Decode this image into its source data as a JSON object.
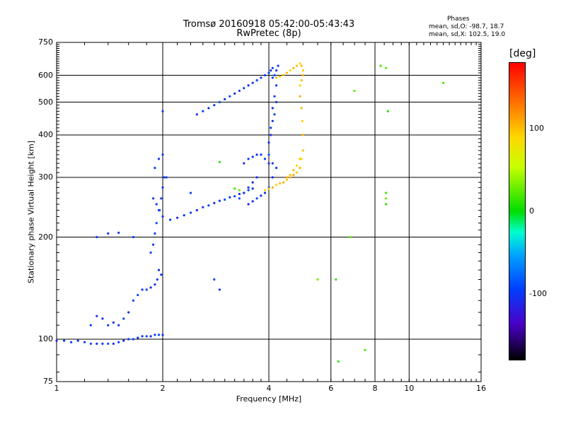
{
  "chart_data": {
    "type": "scatter",
    "title": "Tromsø 20160918 05:42:00-05:43:43",
    "subtitle": "RwPretec (8p)",
    "xlabel": "Frequency [MHz]",
    "ylabel": "Stationary phase Virtual Height [km]",
    "x_scale": "log",
    "y_scale": "log",
    "xlim": [
      1,
      16
    ],
    "ylim": [
      75,
      750
    ],
    "x_ticks": [
      "1",
      "2",
      "4",
      "6",
      "8",
      "10",
      "16"
    ],
    "x_tick_values": [
      1,
      2,
      4,
      6,
      8,
      10,
      16
    ],
    "y_ticks": [
      "750",
      "600",
      "500",
      "400",
      "300",
      "200",
      "100",
      "75"
    ],
    "y_tick_values": [
      750,
      600,
      500,
      400,
      300,
      200,
      100,
      75
    ],
    "grid": true,
    "colorbar": {
      "label": "[deg]",
      "ticks": [
        "100",
        "0",
        "-100"
      ],
      "tick_values": [
        100,
        0,
        -100
      ],
      "range": [
        -180,
        180
      ]
    },
    "phase_stats": {
      "title": "Phases",
      "o_line": "mean, sd,O: -98.7, 18.7",
      "x_line": "mean, sd,X: 102.5, 19.0"
    },
    "series": [
      {
        "mode": "O",
        "phase_deg": -100,
        "x": [
          1.0,
          1.05,
          1.1,
          1.15,
          1.2,
          1.25,
          1.3,
          1.35,
          1.4,
          1.45,
          1.5,
          1.55,
          1.6,
          1.65,
          1.7,
          1.75,
          1.8,
          1.85,
          1.9,
          1.95,
          2.0,
          1.25,
          1.3,
          1.35,
          1.4,
          1.45,
          1.5,
          1.55,
          1.6,
          1.65,
          1.7,
          1.75,
          1.8,
          1.85,
          1.9,
          1.93,
          1.95,
          1.98,
          1.85,
          1.88,
          1.9,
          1.92,
          1.95,
          1.98,
          2.0,
          2.02,
          1.9,
          1.95,
          2.0,
          2.05,
          1.88,
          1.92,
          1.96,
          2.0,
          2.1,
          2.2,
          2.3,
          2.4,
          2.5,
          2.6,
          2.7,
          2.8,
          2.9,
          3.0,
          3.1,
          3.2,
          3.3,
          3.4,
          3.5,
          3.6,
          2.5,
          2.6,
          2.7,
          2.8,
          2.9,
          3.0,
          3.1,
          3.2,
          3.3,
          3.4,
          3.5,
          3.6,
          3.7,
          3.8,
          3.9,
          4.0,
          4.05,
          4.1,
          3.5,
          3.6,
          3.7,
          3.8,
          3.9,
          4.0,
          4.1,
          4.2,
          4.0,
          4.0,
          4.05,
          4.1,
          4.15,
          4.2,
          4.05,
          4.1,
          4.15,
          4.2,
          4.1,
          4.15,
          4.2,
          4.25,
          3.4,
          3.5,
          3.6,
          3.7,
          3.8,
          3.9,
          4.0,
          4.1,
          3.3,
          3.4,
          3.5,
          3.6,
          3.7,
          1.3,
          1.4,
          1.5,
          1.65,
          2.0,
          2.4,
          2.8,
          2.9
        ],
        "y": [
          99,
          99,
          98,
          99,
          98,
          97,
          97,
          97,
          97,
          97,
          98,
          99,
          100,
          100,
          101,
          102,
          102,
          102,
          103,
          103,
          103,
          110,
          117,
          115,
          110,
          112,
          110,
          115,
          120,
          130,
          135,
          140,
          140,
          142,
          145,
          150,
          160,
          155,
          180,
          190,
          205,
          220,
          240,
          260,
          280,
          300,
          320,
          340,
          350,
          300,
          260,
          250,
          240,
          230,
          225,
          228,
          232,
          236,
          240,
          245,
          248,
          252,
          256,
          258,
          262,
          264,
          268,
          270,
          275,
          278,
          460,
          470,
          480,
          490,
          500,
          510,
          520,
          530,
          540,
          550,
          560,
          570,
          580,
          590,
          600,
          610,
          620,
          630,
          250,
          255,
          260,
          265,
          270,
          280,
          300,
          320,
          350,
          380,
          420,
          480,
          520,
          560,
          400,
          440,
          460,
          500,
          590,
          600,
          620,
          640,
          330,
          340,
          345,
          350,
          350,
          340,
          330,
          330,
          260,
          270,
          280,
          290,
          300,
          200,
          205,
          206,
          200,
          470,
          270,
          150,
          140
        ]
      },
      {
        "mode": "X",
        "phase_deg": 100,
        "x": [
          3.9,
          4.0,
          4.1,
          4.2,
          4.3,
          4.4,
          4.5,
          4.6,
          4.7,
          4.8,
          4.9,
          4.95,
          5.0,
          5.0,
          4.98,
          4.95,
          4.9,
          4.9,
          4.95,
          5.0,
          5.0,
          4.95,
          4.9,
          4.8,
          4.7,
          4.6,
          4.5,
          4.4,
          4.3,
          4.2,
          4.5,
          4.6,
          4.7,
          4.8,
          4.9
        ],
        "y": [
          275,
          278,
          280,
          285,
          288,
          290,
          295,
          300,
          305,
          310,
          320,
          340,
          360,
          400,
          440,
          480,
          520,
          560,
          580,
          600,
          620,
          640,
          650,
          640,
          630,
          620,
          610,
          600,
          595,
          590,
          300,
          305,
          315,
          325,
          340
        ]
      },
      {
        "mode": "scattered",
        "phase_deg": 20,
        "x": [
          2.9,
          3.2,
          3.3,
          6.3,
          7.5,
          7.0,
          6.2,
          6.8,
          5.5,
          8.3,
          8.6,
          8.7,
          8.6,
          8.6,
          8.6,
          12.5
        ],
        "y": [
          333,
          278,
          275,
          86,
          93,
          540,
          150,
          200,
          150,
          640,
          630,
          470,
          270,
          260,
          250,
          570
        ]
      }
    ]
  }
}
